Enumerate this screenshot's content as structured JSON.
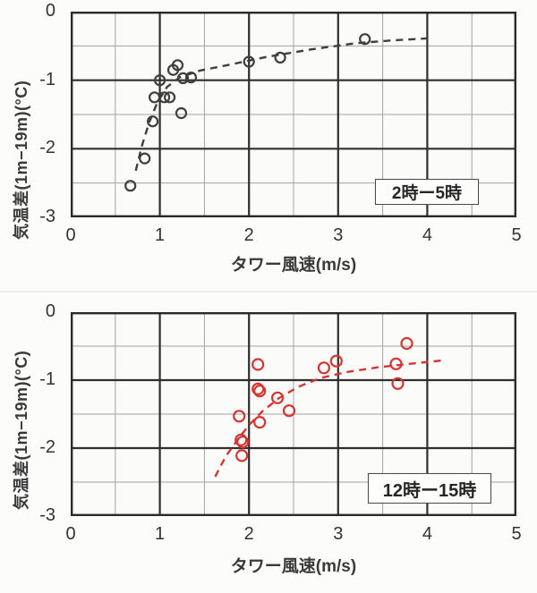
{
  "page": {
    "background": "#fcfcfa"
  },
  "colors": {
    "paper": "#fbfbf9",
    "frame": "#2b2b2b",
    "major_grid": "#2f2f2f",
    "minor_grid": "#a3a3a3",
    "black_series": "#3f3f3f",
    "red_series": "#d23732",
    "tick_text": "#333333"
  },
  "chart_data": [
    {
      "type": "scatter",
      "name": "night-chart",
      "xlabel": "タワー風速(m/s)",
      "ylabel": "気温差(1m−19m)(°C)",
      "annotation": "2時ー5時",
      "xlim": [
        0,
        5
      ],
      "ylim": [
        -3,
        0
      ],
      "xticks": [
        0,
        1,
        2,
        3,
        4,
        5
      ],
      "yticks": [
        0,
        -1,
        -2,
        -3
      ],
      "minor_step": 0.5,
      "grid": "major dark + minor light, 0.5 steps",
      "legend_position": "none",
      "marker": "open-circle",
      "series": [
        {
          "name": "observations 2時-5時",
          "kind": "scatter",
          "color": "#3f3f3f",
          "points": [
            [
              0.67,
              -2.54
            ],
            [
              0.83,
              -2.14
            ],
            [
              0.92,
              -1.6
            ],
            [
              0.94,
              -1.25
            ],
            [
              1.0,
              -1.0
            ],
            [
              1.05,
              -1.25
            ],
            [
              1.11,
              -1.25
            ],
            [
              1.15,
              -0.85
            ],
            [
              1.2,
              -0.78
            ],
            [
              1.24,
              -1.48
            ],
            [
              1.26,
              -0.97
            ],
            [
              1.35,
              -0.96
            ],
            [
              2.0,
              -0.73
            ],
            [
              2.35,
              -0.67
            ],
            [
              3.3,
              -0.4
            ]
          ]
        },
        {
          "name": "trend 2時-5時",
          "kind": "dashed-line",
          "color": "#3f3f3f",
          "points": [
            [
              0.73,
              -2.32
            ],
            [
              0.8,
              -1.95
            ],
            [
              0.88,
              -1.62
            ],
            [
              0.97,
              -1.33
            ],
            [
              1.08,
              -1.1
            ],
            [
              1.22,
              -0.96
            ],
            [
              1.45,
              -0.86
            ],
            [
              1.8,
              -0.77
            ],
            [
              2.2,
              -0.66
            ],
            [
              2.7,
              -0.55
            ],
            [
              3.2,
              -0.46
            ],
            [
              3.6,
              -0.42
            ],
            [
              4.0,
              -0.39
            ]
          ]
        }
      ]
    },
    {
      "type": "scatter",
      "name": "day-chart",
      "xlabel": "タワー風速(m/s)",
      "ylabel": "気温差(1m−19m)(°C)",
      "annotation": "12時ー15時",
      "xlim": [
        0,
        5
      ],
      "ylim": [
        -3,
        0
      ],
      "xticks": [
        0,
        1,
        2,
        3,
        4,
        5
      ],
      "yticks": [
        0,
        -1,
        -2,
        -3
      ],
      "minor_step": 0.5,
      "grid": "major dark + minor light, 0.5 steps",
      "legend_position": "none",
      "marker": "open-circle",
      "series": [
        {
          "name": "observations 12時-15時",
          "kind": "scatter",
          "color": "#d23732",
          "points": [
            [
              1.89,
              -1.53
            ],
            [
              1.91,
              -1.88
            ],
            [
              1.93,
              -1.91
            ],
            [
              1.92,
              -2.11
            ],
            [
              2.1,
              -0.77
            ],
            [
              2.1,
              -1.13
            ],
            [
              2.12,
              -1.16
            ],
            [
              2.12,
              -1.62
            ],
            [
              2.32,
              -1.26
            ],
            [
              2.45,
              -1.45
            ],
            [
              2.84,
              -0.82
            ],
            [
              2.98,
              -0.72
            ],
            [
              3.65,
              -0.76
            ],
            [
              3.67,
              -1.05
            ],
            [
              3.77,
              -0.46
            ]
          ]
        },
        {
          "name": "trend 12時-15時",
          "kind": "dashed-line",
          "color": "#d23732",
          "points": [
            [
              1.62,
              -2.42
            ],
            [
              1.74,
              -2.12
            ],
            [
              1.87,
              -1.88
            ],
            [
              2.0,
              -1.66
            ],
            [
              2.15,
              -1.46
            ],
            [
              2.33,
              -1.27
            ],
            [
              2.55,
              -1.1
            ],
            [
              2.8,
              -0.97
            ],
            [
              3.1,
              -0.88
            ],
            [
              3.45,
              -0.81
            ],
            [
              3.8,
              -0.76
            ],
            [
              4.17,
              -0.71
            ]
          ]
        }
      ]
    }
  ]
}
